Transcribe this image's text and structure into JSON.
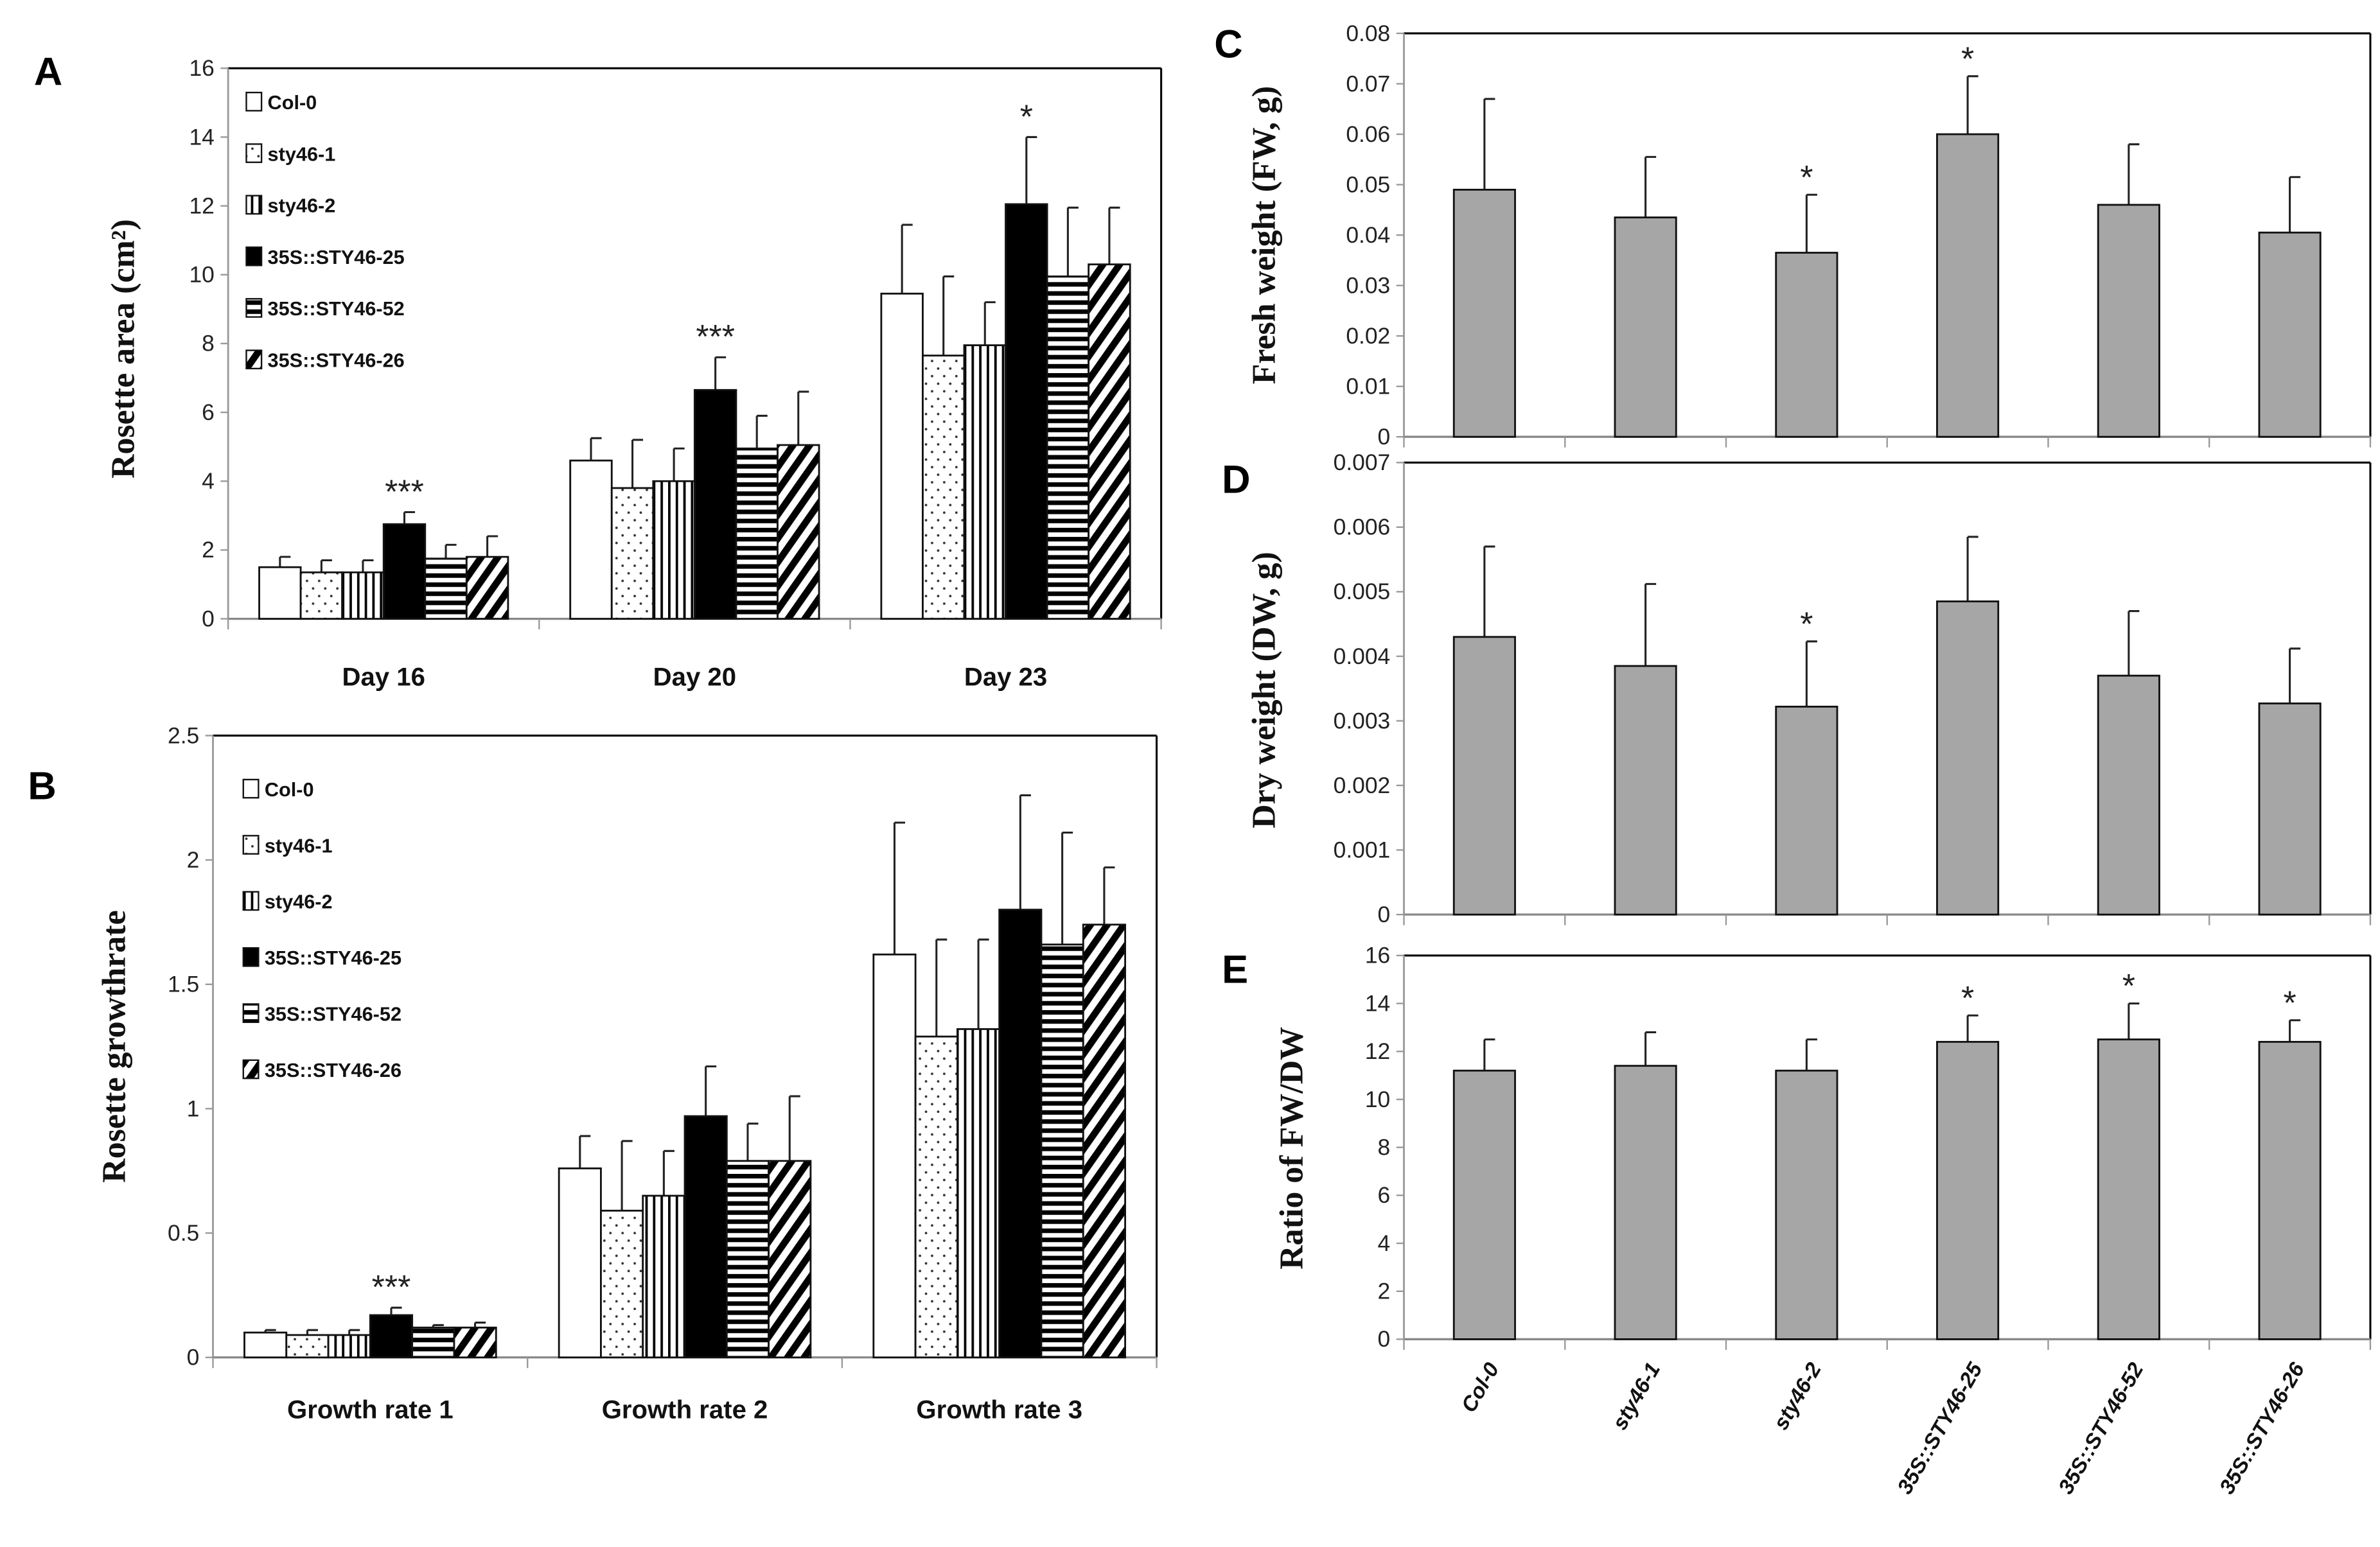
{
  "series_names": [
    "Col-0",
    "sty46-1",
    "sty46-2",
    "35S::STY46-25",
    "35S::STY46-52",
    "35S::STY46-26"
  ],
  "chart_data": [
    {
      "id": "A",
      "panel_label": "A",
      "type": "bar",
      "ylabel": "Rosette area (cm²)",
      "ylim": [
        0,
        16
      ],
      "yticks": [
        "0",
        "2",
        "4",
        "6",
        "8",
        "10",
        "12",
        "14",
        "16"
      ],
      "categories": [
        "Day 16",
        "Day 20",
        "Day 23"
      ],
      "legend": true,
      "legend_position": "top-left",
      "series": [
        {
          "name": "Col-0",
          "pattern": "white",
          "values": [
            1.5,
            4.6,
            9.45
          ],
          "error_top": [
            1.8,
            5.25,
            11.45
          ]
        },
        {
          "name": "sty46-1",
          "pattern": "dots",
          "values": [
            1.35,
            3.8,
            7.65
          ],
          "error_top": [
            1.7,
            5.2,
            9.95
          ]
        },
        {
          "name": "sty46-2",
          "pattern": "vertical",
          "values": [
            1.35,
            4.0,
            7.95
          ],
          "error_top": [
            1.7,
            4.95,
            9.2
          ]
        },
        {
          "name": "35S::STY46-25",
          "pattern": "black",
          "values": [
            2.75,
            6.65,
            12.05
          ],
          "error_top": [
            3.1,
            7.6,
            14.0
          ]
        },
        {
          "name": "35S::STY46-52",
          "pattern": "horizontal",
          "values": [
            1.75,
            4.95,
            9.95
          ],
          "error_top": [
            2.15,
            5.9,
            11.95
          ]
        },
        {
          "name": "35S::STY46-26",
          "pattern": "diagonal",
          "values": [
            1.8,
            5.05,
            10.3
          ],
          "error_top": [
            2.4,
            6.6,
            11.95
          ]
        }
      ],
      "significance": [
        {
          "category": 0,
          "series": 3,
          "label": "***"
        },
        {
          "category": 1,
          "series": 3,
          "label": "***"
        },
        {
          "category": 2,
          "series": 3,
          "label": "*"
        }
      ]
    },
    {
      "id": "B",
      "panel_label": "B",
      "type": "bar",
      "ylabel": "Rosette growthrate",
      "ylim": [
        0,
        2.5
      ],
      "yticks": [
        "0",
        "0.5",
        "1",
        "1.5",
        "2",
        "2.5"
      ],
      "categories": [
        "Growth rate 1",
        "Growth rate 2",
        "Growth rate 3"
      ],
      "legend": true,
      "legend_position": "top-left",
      "series": [
        {
          "name": "Col-0",
          "pattern": "white",
          "values": [
            0.1,
            0.76,
            1.62
          ],
          "error_top": [
            0.11,
            0.89,
            2.15
          ]
        },
        {
          "name": "sty46-1",
          "pattern": "dots",
          "values": [
            0.09,
            0.59,
            1.29
          ],
          "error_top": [
            0.11,
            0.87,
            1.68
          ]
        },
        {
          "name": "sty46-2",
          "pattern": "vertical",
          "values": [
            0.09,
            0.65,
            1.32
          ],
          "error_top": [
            0.11,
            0.83,
            1.68
          ]
        },
        {
          "name": "35S::STY46-25",
          "pattern": "black",
          "values": [
            0.17,
            0.97,
            1.8
          ],
          "error_top": [
            0.2,
            1.17,
            2.26
          ]
        },
        {
          "name": "35S::STY46-52",
          "pattern": "horizontal",
          "values": [
            0.12,
            0.79,
            1.66
          ],
          "error_top": [
            0.13,
            0.94,
            2.11
          ]
        },
        {
          "name": "35S::STY46-26",
          "pattern": "diagonal",
          "values": [
            0.12,
            0.79,
            1.74
          ],
          "error_top": [
            0.14,
            1.05,
            1.97
          ]
        }
      ],
      "significance": [
        {
          "category": 0,
          "series": 3,
          "label": "***"
        }
      ]
    },
    {
      "id": "C",
      "panel_label": "C",
      "type": "bar",
      "ylabel": "Fresh weight  (FW, g)",
      "ylim": [
        0,
        0.08
      ],
      "yticks": [
        "0",
        "0.01",
        "0.02",
        "0.03",
        "0.04",
        "0.05",
        "0.06",
        "0.07",
        "0.08"
      ],
      "categories": [
        "Col-0",
        "sty46-1",
        "sty46-2",
        "35S::STY46-25",
        "35S::STY46-52",
        "35S::STY46-26"
      ],
      "bar_color": "#a6a6a6",
      "values": [
        0.049,
        0.0435,
        0.0365,
        0.06,
        0.046,
        0.0405
      ],
      "error_top": [
        0.067,
        0.0555,
        0.048,
        0.0715,
        0.058,
        0.0515
      ],
      "significance": [
        {
          "category": 2,
          "label": "*"
        },
        {
          "category": 3,
          "label": "*"
        }
      ]
    },
    {
      "id": "D",
      "panel_label": "D",
      "type": "bar",
      "ylabel": "Dry weight  (DW, g)",
      "ylim": [
        0,
        0.007
      ],
      "yticks": [
        "0",
        "0.001",
        "0.002",
        "0.003",
        "0.004",
        "0.005",
        "0.006",
        "0.007"
      ],
      "categories": [
        "Col-0",
        "sty46-1",
        "sty46-2",
        "35S::STY46-25",
        "35S::STY46-52",
        "35S::STY46-26"
      ],
      "bar_color": "#a6a6a6",
      "values": [
        0.0043,
        0.00385,
        0.00322,
        0.00485,
        0.0037,
        0.00327
      ],
      "error_top": [
        0.0057,
        0.00512,
        0.00423,
        0.00585,
        0.0047,
        0.00412
      ],
      "significance": [
        {
          "category": 2,
          "label": "*"
        }
      ]
    },
    {
      "id": "E",
      "panel_label": "E",
      "type": "bar",
      "ylabel": "Ratio of FW/DW",
      "ylim": [
        0,
        16
      ],
      "yticks": [
        "0",
        "2",
        "4",
        "6",
        "8",
        "10",
        "12",
        "14",
        "16"
      ],
      "categories": [
        "Col-0",
        "sty46-1",
        "sty46-2",
        "35S::STY46-25",
        "35S::STY46-52",
        "35S::STY46-26"
      ],
      "show_category_labels": true,
      "bar_color": "#a6a6a6",
      "values": [
        11.2,
        11.4,
        11.2,
        12.4,
        12.5,
        12.4
      ],
      "error_top": [
        12.5,
        12.8,
        12.5,
        13.5,
        14.0,
        13.3
      ],
      "significance": [
        {
          "category": 3,
          "label": "*"
        },
        {
          "category": 4,
          "label": "*"
        },
        {
          "category": 5,
          "label": "*"
        }
      ]
    }
  ]
}
